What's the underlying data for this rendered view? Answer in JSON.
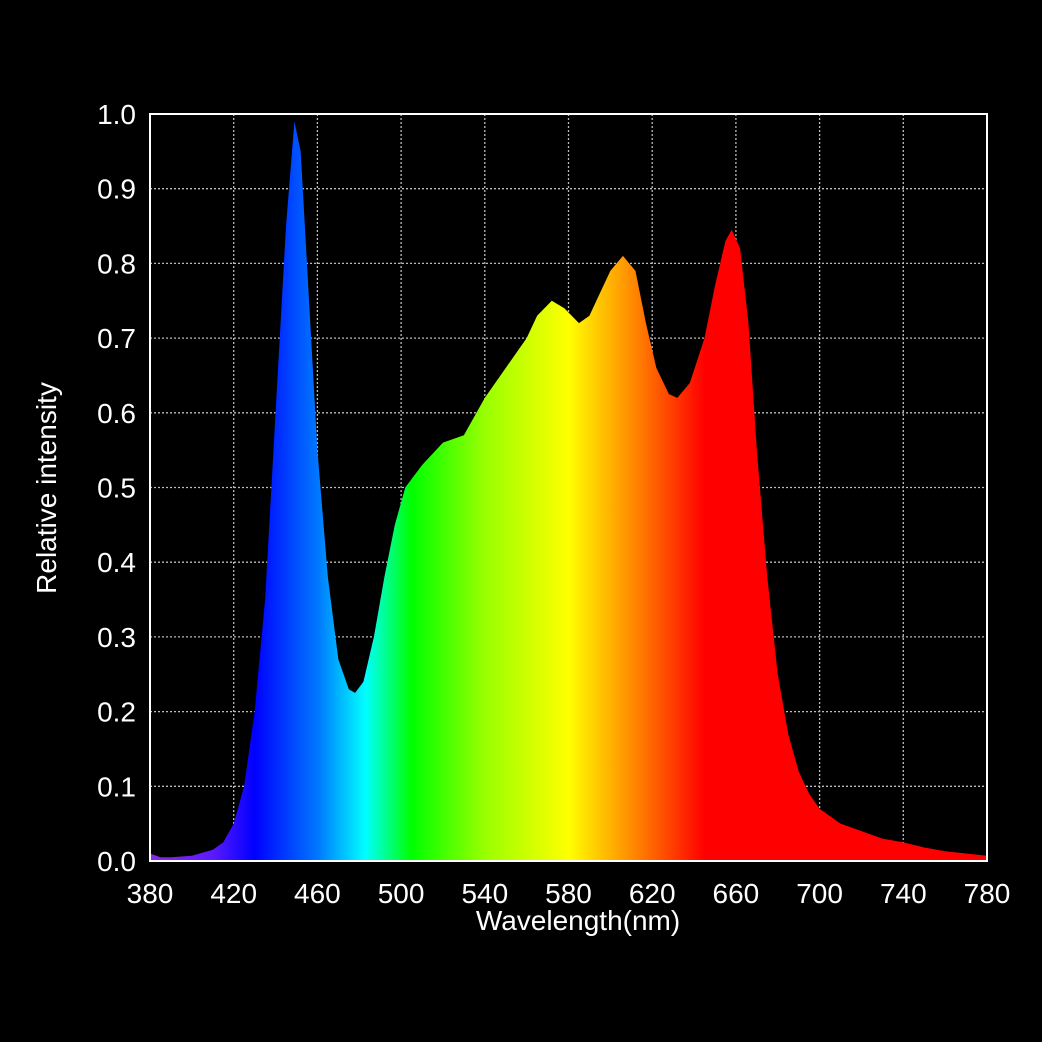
{
  "chart_data": {
    "type": "area",
    "xlabel": "Wavelength(nm)",
    "ylabel": "Relative intensity",
    "x": [
      380,
      385,
      390,
      400,
      410,
      415,
      420,
      425,
      430,
      435,
      440,
      445,
      449,
      452,
      455,
      460,
      465,
      470,
      475,
      478,
      482,
      487,
      492,
      497,
      502,
      510,
      520,
      530,
      540,
      550,
      560,
      565,
      572,
      578,
      585,
      590,
      595,
      600,
      606,
      612,
      617,
      622,
      628,
      632,
      638,
      645,
      650,
      655,
      658,
      662,
      666,
      670,
      675,
      680,
      685,
      690,
      695,
      700,
      710,
      720,
      730,
      740,
      750,
      760,
      770,
      780
    ],
    "y": [
      0.01,
      0.005,
      0.005,
      0.007,
      0.015,
      0.025,
      0.05,
      0.1,
      0.2,
      0.35,
      0.6,
      0.85,
      0.99,
      0.95,
      0.8,
      0.55,
      0.38,
      0.27,
      0.23,
      0.225,
      0.24,
      0.3,
      0.38,
      0.45,
      0.5,
      0.53,
      0.56,
      0.57,
      0.62,
      0.66,
      0.7,
      0.73,
      0.75,
      0.74,
      0.72,
      0.73,
      0.76,
      0.79,
      0.81,
      0.79,
      0.72,
      0.66,
      0.625,
      0.62,
      0.64,
      0.7,
      0.77,
      0.83,
      0.845,
      0.82,
      0.72,
      0.55,
      0.38,
      0.25,
      0.17,
      0.12,
      0.09,
      0.07,
      0.05,
      0.04,
      0.03,
      0.025,
      0.018,
      0.013,
      0.01,
      0.007
    ],
    "xlim": [
      380,
      780
    ],
    "ylim": [
      0,
      1
    ],
    "xticks": [
      380,
      420,
      460,
      500,
      540,
      580,
      620,
      660,
      700,
      740,
      780
    ],
    "yticks": [
      {
        "value": 0,
        "label": "0.0"
      },
      0.1,
      0.2,
      0.3,
      0.4,
      0.5,
      0.6,
      0.7,
      0.8,
      0.9,
      {
        "value": 1,
        "label": "1.0"
      }
    ],
    "grid": true,
    "gradient": [
      {
        "x": 380,
        "color": "#8a2be2"
      },
      {
        "x": 410,
        "color": "#5a1aff"
      },
      {
        "x": 430,
        "color": "#0000ff"
      },
      {
        "x": 460,
        "color": "#0077ff"
      },
      {
        "x": 483,
        "color": "#00ffff"
      },
      {
        "x": 505,
        "color": "#00ff00"
      },
      {
        "x": 540,
        "color": "#99ff00"
      },
      {
        "x": 580,
        "color": "#ffff00"
      },
      {
        "x": 610,
        "color": "#ff8c00"
      },
      {
        "x": 645,
        "color": "#ff0000"
      },
      {
        "x": 780,
        "color": "#ff0000"
      }
    ]
  }
}
